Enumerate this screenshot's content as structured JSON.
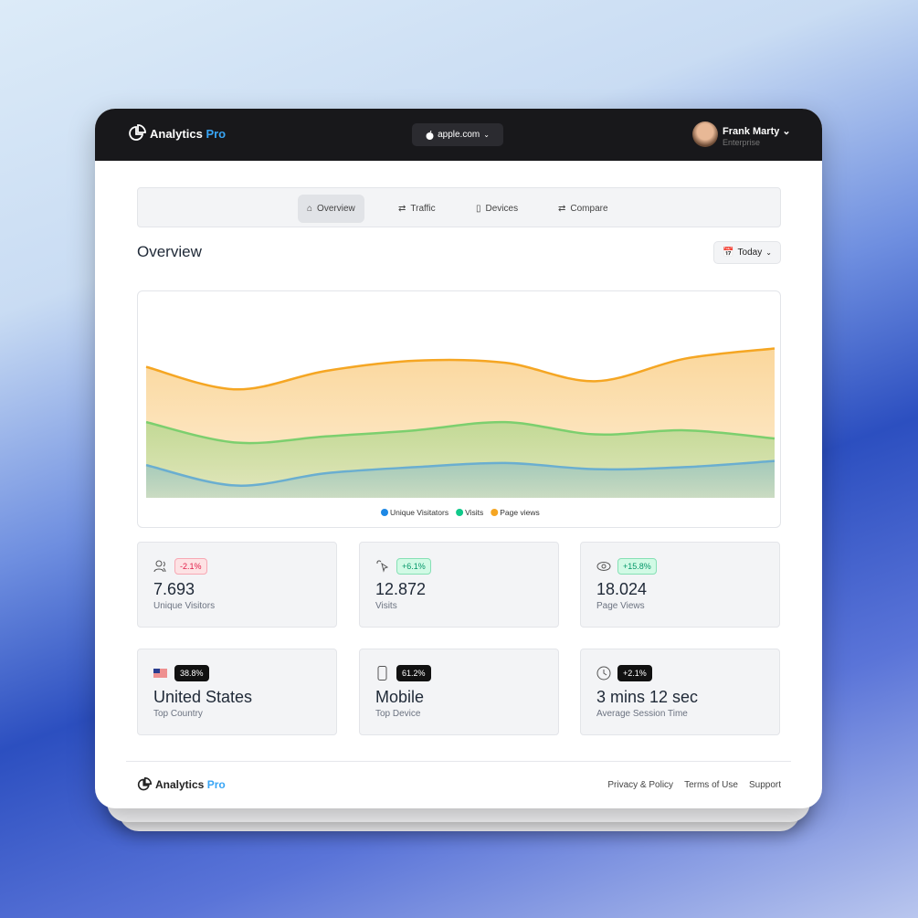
{
  "header": {
    "brand": "Analytics",
    "brand_accent": "Pro",
    "domain": "apple.com",
    "user_name": "Frank Marty",
    "user_plan": "Enterprise"
  },
  "tabs": [
    "Overview",
    "Traffic",
    "Devices",
    "Compare"
  ],
  "page_title": "Overview",
  "date_range": "Today",
  "chart_data": {
    "type": "area",
    "ylim": [
      0,
      100
    ],
    "series": [
      {
        "name": "Unique Visitators",
        "color": "#6aaed0",
        "legend_color": "#1e88e5",
        "values": [
          16,
          6,
          12,
          15,
          17,
          14,
          15,
          18
        ]
      },
      {
        "name": "Visits",
        "color": "#7ccf6e",
        "legend_color": "#10c98a",
        "values": [
          37,
          27,
          30,
          33,
          37,
          31,
          33,
          29
        ]
      },
      {
        "name": "Page views",
        "color": "#f5a623",
        "legend_color": "#f5a623",
        "values": [
          64,
          53,
          62,
          67,
          66,
          57,
          68,
          73
        ]
      }
    ]
  },
  "stats": [
    {
      "badge": "-2.1%",
      "value": "7.693",
      "label": "Unique Visitors"
    },
    {
      "badge": "+6.1%",
      "value": "12.872",
      "label": "Visits"
    },
    {
      "badge": "+15.8%",
      "value": "18.024",
      "label": "Page Views"
    },
    {
      "badge": "38.8%",
      "value": "United States",
      "label": "Top Country"
    },
    {
      "badge": "61.2%",
      "value": "Mobile",
      "label": "Top Device"
    },
    {
      "badge": "+2.1%",
      "value": "3 mins 12 sec",
      "label": "Average Session Time"
    }
  ],
  "footer": {
    "brand": "Analytics",
    "brand_accent": "Pro",
    "links": [
      "Privacy & Policy",
      "Terms of Use",
      "Support"
    ]
  }
}
